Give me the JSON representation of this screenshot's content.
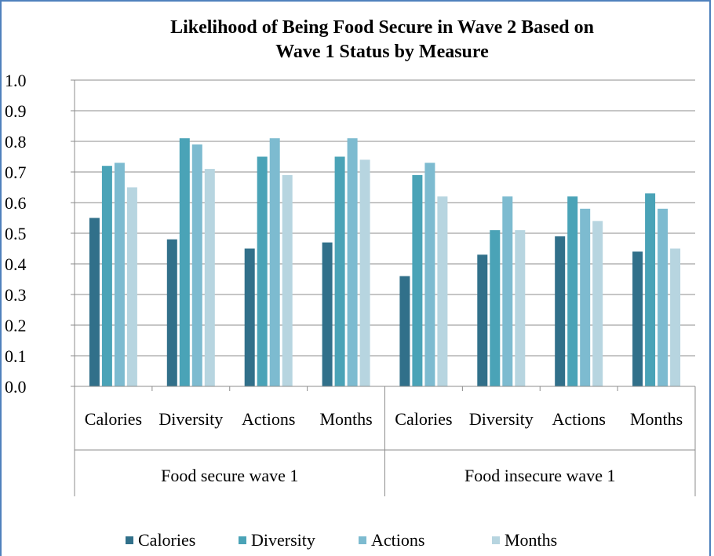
{
  "chart_data": {
    "type": "bar",
    "title_lines": [
      "Likelihood of Being Food Secure in Wave 2 Based on",
      "Wave 1 Status by Measure"
    ],
    "groups": [
      {
        "label": "Food secure wave 1",
        "categories": [
          "Calories",
          "Diversity",
          "Actions",
          "Months"
        ]
      },
      {
        "label": "Food insecure wave 1",
        "categories": [
          "Calories",
          "Diversity",
          "Actions",
          "Months"
        ]
      }
    ],
    "series": [
      {
        "name": "Calories",
        "color": "#31708a",
        "values": [
          0.55,
          0.48,
          0.45,
          0.47,
          0.36,
          0.43,
          0.49,
          0.44
        ]
      },
      {
        "name": "Diversity",
        "color": "#4aa3b7",
        "values": [
          0.72,
          0.81,
          0.75,
          0.75,
          0.69,
          0.51,
          0.62,
          0.63
        ]
      },
      {
        "name": "Actions",
        "color": "#7dbbd0",
        "values": [
          0.73,
          0.79,
          0.81,
          0.81,
          0.73,
          0.62,
          0.58,
          0.58
        ]
      },
      {
        "name": "Months",
        "color": "#b7d5e0",
        "values": [
          0.65,
          0.71,
          0.69,
          0.74,
          0.62,
          0.51,
          0.54,
          0.45
        ]
      }
    ],
    "ylim": [
      0,
      1.0
    ],
    "yticks": [
      "0.0",
      "0.1",
      "0.2",
      "0.3",
      "0.4",
      "0.5",
      "0.6",
      "0.7",
      "0.8",
      "0.9",
      "1.0"
    ],
    "grid": true,
    "legend_position": "bottom",
    "xlabel": "",
    "ylabel": ""
  }
}
